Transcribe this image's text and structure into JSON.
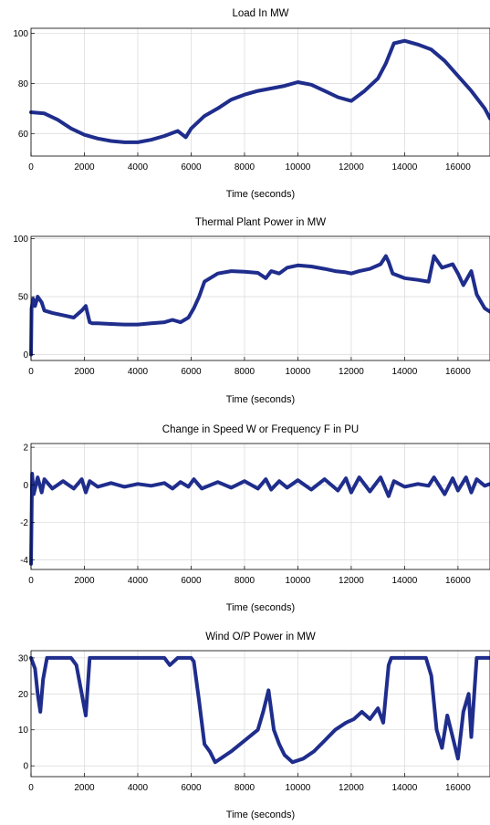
{
  "chart_data": [
    {
      "type": "line",
      "title": "Load In MW",
      "xlabel": "Time (seconds)",
      "ylabel": "",
      "xlim": [
        0,
        17200
      ],
      "ylim": [
        51,
        102
      ],
      "xticks": [
        0,
        2000,
        4000,
        6000,
        8000,
        10000,
        12000,
        14000,
        16000
      ],
      "yticks": [
        60,
        80,
        100
      ],
      "grid": true,
      "series": [
        {
          "color": "#1f2d8c",
          "x": [
            0,
            500,
            1000,
            1500,
            2000,
            2500,
            3000,
            3500,
            4000,
            4500,
            5000,
            5500,
            5800,
            6000,
            6500,
            7000,
            7500,
            8000,
            8500,
            9000,
            9500,
            10000,
            10500,
            11000,
            11500,
            12000,
            12500,
            13000,
            13300,
            13600,
            14000,
            14500,
            15000,
            15500,
            16000,
            16500,
            17000,
            17200
          ],
          "y": [
            68.5,
            68,
            65.5,
            62,
            59.5,
            58,
            57,
            56.5,
            56.5,
            57.5,
            59,
            61,
            58.5,
            62,
            67,
            70,
            73.5,
            75.5,
            77,
            78,
            79,
            80.5,
            79.5,
            77,
            74.5,
            73,
            77,
            82,
            88,
            96,
            97,
            95.5,
            93.5,
            89,
            83,
            77,
            70,
            66
          ]
        }
      ]
    },
    {
      "type": "line",
      "title": "Thermal Plant Power in MW",
      "xlabel": "Time (seconds)",
      "ylabel": "",
      "xlim": [
        0,
        17200
      ],
      "ylim": [
        -5,
        102
      ],
      "xticks": [
        0,
        2000,
        4000,
        6000,
        8000,
        10000,
        12000,
        14000,
        16000
      ],
      "yticks": [
        0,
        50,
        100
      ],
      "grid": true,
      "series": [
        {
          "color": "#1f2d8c",
          "x": [
            0,
            20,
            80,
            150,
            250,
            400,
            500,
            800,
            1200,
            1600,
            1900,
            2050,
            2200,
            2300,
            2500,
            3000,
            3500,
            4000,
            4500,
            5000,
            5300,
            5600,
            5900,
            6100,
            6300,
            6500,
            7000,
            7500,
            8000,
            8500,
            8800,
            9000,
            9300,
            9600,
            10000,
            10500,
            11000,
            11400,
            11800,
            12000,
            12300,
            12700,
            13100,
            13300,
            13400,
            13550,
            14000,
            14500,
            14900,
            15100,
            15400,
            15800,
            16000,
            16200,
            16500,
            16700,
            17000,
            17200
          ],
          "y": [
            0,
            40,
            48,
            42,
            50,
            45,
            38,
            36,
            34,
            32,
            38,
            42,
            28,
            27,
            27,
            26.5,
            26,
            26,
            27,
            28,
            30,
            28,
            32,
            40,
            50,
            63,
            70,
            72,
            71.5,
            70.5,
            66,
            72,
            70,
            75,
            77,
            76,
            74,
            72,
            71,
            70,
            72,
            74,
            78,
            85,
            80,
            70,
            66,
            64.5,
            63,
            85,
            75,
            78,
            70,
            60,
            72,
            52,
            40,
            37
          ]
        }
      ]
    },
    {
      "type": "line",
      "title": "Change in Speed W or Frequency F in PU",
      "xlabel": "Time (seconds)",
      "ylabel": "",
      "xlim": [
        0,
        17200
      ],
      "ylim": [
        -4.5,
        2.2
      ],
      "xticks": [
        0,
        2000,
        4000,
        6000,
        8000,
        10000,
        12000,
        14000,
        16000
      ],
      "yticks": [
        -4,
        -2,
        0,
        2
      ],
      "grid": true,
      "series": [
        {
          "color": "#1f2d8c",
          "x": [
            0,
            40,
            100,
            250,
            400,
            500,
            800,
            1200,
            1600,
            1900,
            2050,
            2200,
            2500,
            3000,
            3500,
            4000,
            4500,
            5000,
            5300,
            5600,
            5900,
            6100,
            6400,
            7000,
            7500,
            8000,
            8500,
            8800,
            9000,
            9300,
            9600,
            10000,
            10500,
            11000,
            11500,
            11800,
            12000,
            12300,
            12700,
            13100,
            13400,
            13600,
            14000,
            14500,
            14900,
            15100,
            15500,
            15800,
            16000,
            16300,
            16500,
            16700,
            17000,
            17200
          ],
          "y": [
            -4.2,
            0.6,
            -0.5,
            0.4,
            -0.4,
            0.3,
            -0.2,
            0.2,
            -0.2,
            0.3,
            -0.4,
            0.2,
            -0.1,
            0.1,
            -0.1,
            0.05,
            -0.05,
            0.1,
            -0.2,
            0.15,
            -0.1,
            0.3,
            -0.2,
            0.15,
            -0.15,
            0.2,
            -0.2,
            0.3,
            -0.25,
            0.2,
            -0.15,
            0.25,
            -0.25,
            0.3,
            -0.3,
            0.35,
            -0.4,
            0.4,
            -0.35,
            0.4,
            -0.6,
            0.2,
            -0.1,
            0.05,
            -0.05,
            0.4,
            -0.5,
            0.35,
            -0.3,
            0.4,
            -0.4,
            0.3,
            -0.05,
            0.05
          ]
        }
      ]
    },
    {
      "type": "line",
      "title": "Wind O/P Power  in MW",
      "xlabel": "Time (seconds)",
      "ylabel": "",
      "xlim": [
        0,
        17200
      ],
      "ylim": [
        -3,
        32
      ],
      "xticks": [
        0,
        2000,
        4000,
        6000,
        8000,
        10000,
        12000,
        14000,
        16000
      ],
      "yticks": [
        0,
        10,
        20,
        30
      ],
      "grid": true,
      "series": [
        {
          "color": "#1f2d8c",
          "x": [
            0,
            150,
            250,
            350,
            450,
            600,
            800,
            1200,
            1500,
            1700,
            1900,
            2050,
            2200,
            2400,
            3000,
            3500,
            4000,
            4500,
            5000,
            5200,
            5500,
            6000,
            6100,
            6300,
            6500,
            6700,
            6900,
            7100,
            7500,
            8000,
            8500,
            8700,
            8900,
            9100,
            9300,
            9500,
            9800,
            10200,
            10600,
            11000,
            11400,
            11800,
            12100,
            12400,
            12700,
            13000,
            13200,
            13400,
            13500,
            13600,
            14000,
            14500,
            14800,
            15000,
            15200,
            15400,
            15600,
            15800,
            16000,
            16200,
            16400,
            16500,
            16700,
            17000,
            17200
          ],
          "y": [
            30,
            27,
            20,
            15,
            24,
            30,
            30,
            30,
            30,
            28,
            20,
            14,
            30,
            30,
            30,
            30,
            30,
            30,
            30,
            28,
            30,
            30,
            29,
            18,
            6,
            4,
            1,
            2,
            4,
            7,
            10,
            15,
            21,
            10,
            6,
            3,
            1,
            2,
            4,
            7,
            10,
            12,
            13,
            15,
            13,
            16,
            12,
            28,
            30,
            30,
            30,
            30,
            30,
            25,
            10,
            5,
            14,
            8,
            2,
            15,
            20,
            8,
            30,
            30,
            30
          ]
        }
      ]
    }
  ]
}
